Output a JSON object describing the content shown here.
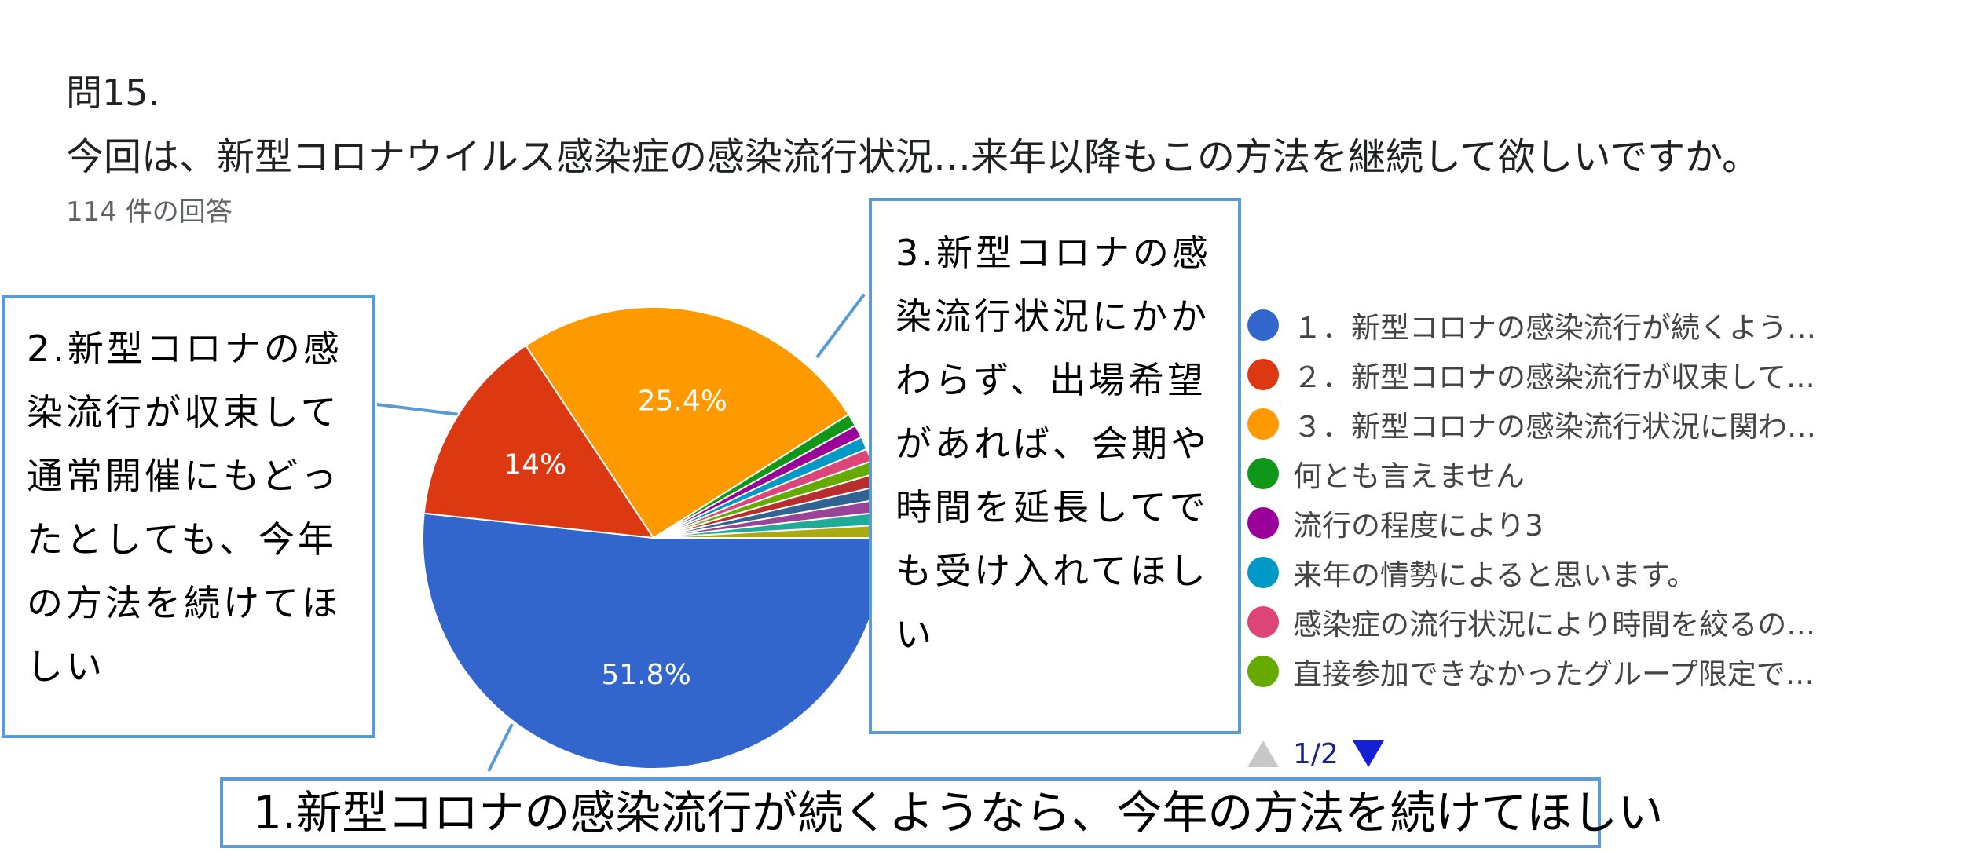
{
  "question": {
    "number": "問15.",
    "title": "今回は、新型コロナウイルス感染症の感染流行状況…来年以降もこの方法を継続して欲しいですか。",
    "response_count": "114 件の回答"
  },
  "chart_data": {
    "type": "pie",
    "total_responses": 114,
    "slices": [
      {
        "label": "１．新型コロナの感染流行が続くよう…",
        "value": 51.8,
        "color": "#3366cc",
        "data_label": "51.8%"
      },
      {
        "label": "２．新型コロナの感染流行が収束して…",
        "value": 14.0,
        "color": "#dc3912",
        "data_label": "14%"
      },
      {
        "label": "３．新型コロナの感染流行状況に関わ…",
        "value": 25.4,
        "color": "#ff9900",
        "data_label": "25.4%"
      },
      {
        "label": "何とも言えません",
        "value": 0.9,
        "color": "#109618"
      },
      {
        "label": "流行の程度により3",
        "value": 0.9,
        "color": "#990099"
      },
      {
        "label": "来年の情勢によると思います。",
        "value": 0.9,
        "color": "#0099c6"
      },
      {
        "label": "感染症の流行状況により時間を絞るの…",
        "value": 0.9,
        "color": "#dd4477"
      },
      {
        "label": "直接参加できなかったグループ限定で…",
        "value": 0.9,
        "color": "#66aa00"
      },
      {
        "value": 0.9,
        "color": "#b82e2e"
      },
      {
        "value": 0.9,
        "color": "#316395"
      },
      {
        "value": 0.9,
        "color": "#994499"
      },
      {
        "value": 0.9,
        "color": "#22aa99"
      },
      {
        "value": 0.9,
        "color": "#aaaa11"
      }
    ],
    "legend_position": "right",
    "legend_page": "1/2"
  },
  "callouts": {
    "c1": "1.新型コロナの感染流行が続くようなら、今年の方法を続けてほしい",
    "c2": "2.新型コロナの感染流行が収束して通常開催にもどったとしても、今年の方法を続けてほしい",
    "c3": "3.新型コロナの感染流行状況にかかわらず、出場希望があれば、会期や時間を延長してでも受け入れてほしい"
  },
  "colors": {
    "callout_border": "#5b9bd5",
    "pager_active": "#1520d6",
    "pager_inactive": "#c8c8c8"
  }
}
